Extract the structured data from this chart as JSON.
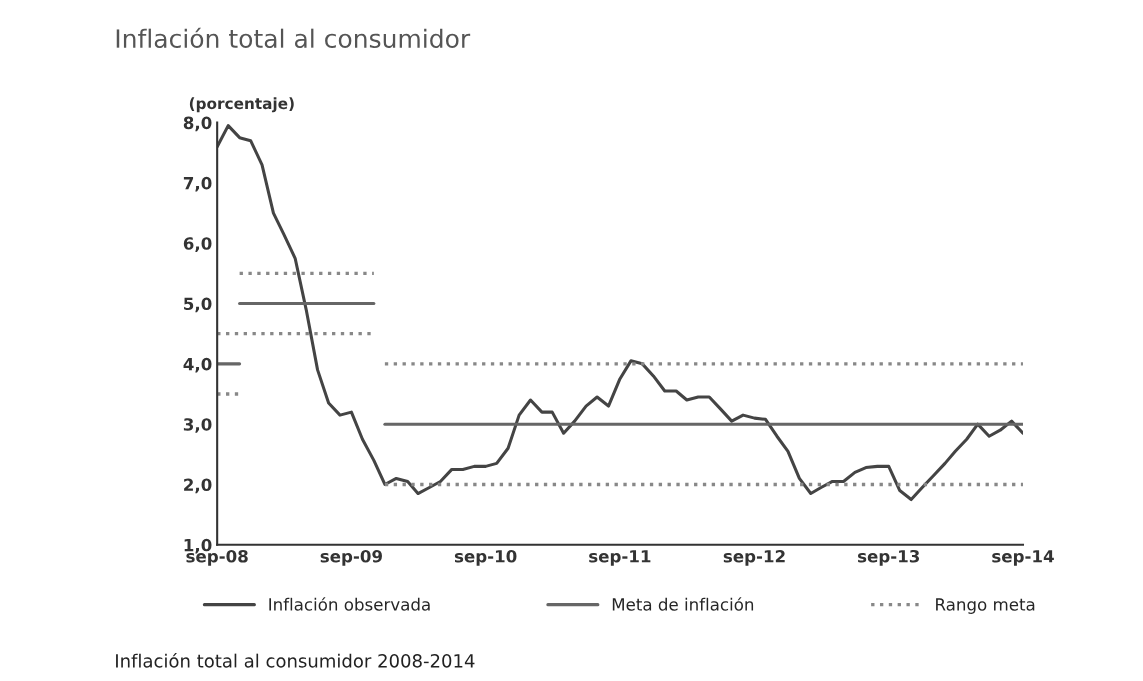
{
  "chart_data": {
    "type": "line",
    "title": "Inflación total al consumidor",
    "ylabel": "(porcentaje)",
    "annotations": [
      "Inflación total al consumidor 2008-2014"
    ],
    "xlim": [
      "2008-09",
      "2014-09"
    ],
    "ylim": [
      1,
      8
    ],
    "xticks": [
      {
        "value": "2008-09",
        "label": "sep-08"
      },
      {
        "value": "2009-09",
        "label": "sep-09"
      },
      {
        "value": "2010-09",
        "label": "sep-10"
      },
      {
        "value": "2011-09",
        "label": "sep-11"
      },
      {
        "value": "2012-09",
        "label": "sep-12"
      },
      {
        "value": "2013-09",
        "label": "sep-13"
      },
      {
        "value": "2014-09",
        "label": "sep-14"
      }
    ],
    "yticks": [
      {
        "value": 1,
        "label": "1,0"
      },
      {
        "value": 2,
        "label": "2,0"
      },
      {
        "value": 3,
        "label": "3,0"
      },
      {
        "value": 4,
        "label": "4,0"
      },
      {
        "value": 5,
        "label": "5,0"
      },
      {
        "value": 6,
        "label": "6,0"
      },
      {
        "value": 7,
        "label": "7,0"
      },
      {
        "value": 8,
        "label": "8,0"
      }
    ],
    "grid": false,
    "legend": "bottom",
    "series": [
      {
        "name": "Inflación observada",
        "color": "#444444",
        "line_style": "solid",
        "x": [
          "2008-09",
          "2008-10",
          "2008-11",
          "2008-12",
          "2009-01",
          "2009-02",
          "2009-03",
          "2009-04",
          "2009-05",
          "2009-06",
          "2009-07",
          "2009-08",
          "2009-09",
          "2009-10",
          "2009-11",
          "2009-12",
          "2010-01",
          "2010-02",
          "2010-03",
          "2010-04",
          "2010-05",
          "2010-06",
          "2010-07",
          "2010-08",
          "2010-09",
          "2010-10",
          "2010-11",
          "2010-12",
          "2011-01",
          "2011-02",
          "2011-03",
          "2011-04",
          "2011-05",
          "2011-06",
          "2011-07",
          "2011-08",
          "2011-09",
          "2011-10",
          "2011-11",
          "2011-12",
          "2012-01",
          "2012-02",
          "2012-03",
          "2012-04",
          "2012-05",
          "2012-06",
          "2012-07",
          "2012-08",
          "2012-09",
          "2012-10",
          "2012-11",
          "2012-12",
          "2013-01",
          "2013-02",
          "2013-03",
          "2013-04",
          "2013-05",
          "2013-06",
          "2013-07",
          "2013-08",
          "2013-09",
          "2013-10",
          "2013-11",
          "2013-12",
          "2014-01",
          "2014-02",
          "2014-03",
          "2014-04",
          "2014-05",
          "2014-06",
          "2014-07",
          "2014-08",
          "2014-09"
        ],
        "values": [
          7.6,
          7.95,
          7.75,
          7.7,
          7.3,
          6.5,
          6.15,
          5.75,
          4.9,
          3.9,
          3.35,
          3.15,
          3.2,
          2.75,
          2.4,
          2.0,
          2.1,
          2.05,
          1.85,
          1.95,
          2.05,
          2.25,
          2.25,
          2.3,
          2.3,
          2.35,
          2.6,
          3.15,
          3.4,
          3.2,
          3.2,
          2.85,
          3.05,
          3.3,
          3.45,
          3.3,
          3.75,
          4.05,
          4.0,
          3.8,
          3.55,
          3.55,
          3.4,
          3.45,
          3.45,
          3.25,
          3.05,
          3.15,
          3.1,
          3.08,
          2.8,
          2.55,
          2.1,
          1.85,
          1.95,
          2.05,
          2.05,
          2.2,
          2.28,
          2.3,
          2.3,
          1.9,
          1.75,
          1.95,
          2.15,
          2.35,
          2.55,
          2.75,
          3.0,
          2.8,
          2.9,
          3.05,
          2.85
        ]
      },
      {
        "name": "Meta de inflación",
        "color": "#666666",
        "line_style": "solid",
        "x": [
          "2009-12",
          "2014-09"
        ],
        "values": [
          3,
          3
        ]
      },
      {
        "color": "#666666",
        "line_style": "solid",
        "x": [
          "2008-11",
          "2009-11"
        ],
        "values": [
          5,
          5
        ]
      },
      {
        "color": "#666666",
        "line_style": "solid",
        "x": [
          "2008-09",
          "2008-11"
        ],
        "values": [
          4,
          4
        ]
      },
      {
        "name": "Rango meta",
        "color": "#888888",
        "line_style": "dotted",
        "x": [
          "2009-12",
          "2014-09"
        ],
        "values": [
          4,
          4
        ]
      },
      {
        "color": "#888888",
        "line_style": "dotted",
        "x": [
          "2009-12",
          "2014-09"
        ],
        "values": [
          2,
          2
        ]
      },
      {
        "color": "#888888",
        "line_style": "dotted",
        "x": [
          "2008-11",
          "2009-11"
        ],
        "values": [
          5.5,
          5.5
        ]
      },
      {
        "color": "#888888",
        "line_style": "dotted",
        "x": [
          "2008-09",
          "2009-11"
        ],
        "values": [
          4.5,
          4.5
        ]
      },
      {
        "color": "#888888",
        "line_style": "dotted",
        "x": [
          "2008-09",
          "2008-11"
        ],
        "values": [
          3.5,
          3.5
        ]
      }
    ]
  }
}
